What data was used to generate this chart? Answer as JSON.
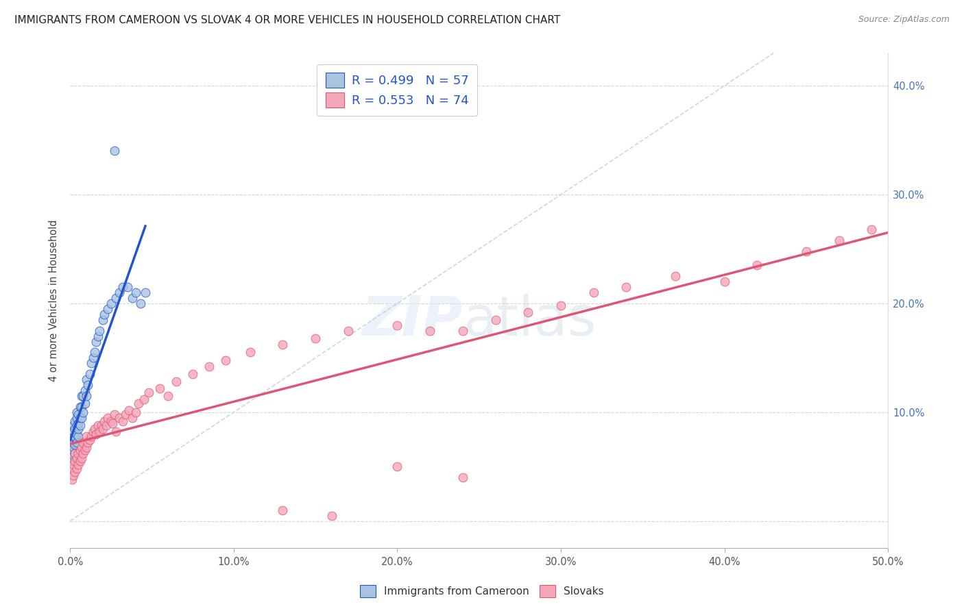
{
  "title": "IMMIGRANTS FROM CAMEROON VS SLOVAK 4 OR MORE VEHICLES IN HOUSEHOLD CORRELATION CHART",
  "source": "Source: ZipAtlas.com",
  "ylabel": "4 or more Vehicles in Household",
  "xlim": [
    0.0,
    0.5
  ],
  "ylim": [
    -0.025,
    0.43
  ],
  "legend_R1": "R = 0.499",
  "legend_N1": "N = 57",
  "legend_R2": "R = 0.553",
  "legend_N2": "N = 74",
  "legend_label1": "Immigrants from Cameroon",
  "legend_label2": "Slovaks",
  "color_cameroon": "#a8c4e0",
  "color_slovak": "#f4a7b9",
  "line_color_cameroon": "#2255cc",
  "line_color_slovak": "#e05575",
  "dashed_line_color": "#b8cfe0",
  "cam_x": [
    0.001,
    0.001,
    0.001,
    0.001,
    0.002,
    0.002,
    0.002,
    0.002,
    0.002,
    0.002,
    0.003,
    0.003,
    0.003,
    0.003,
    0.003,
    0.004,
    0.004,
    0.004,
    0.004,
    0.004,
    0.005,
    0.005,
    0.005,
    0.005,
    0.006,
    0.006,
    0.006,
    0.007,
    0.007,
    0.007,
    0.008,
    0.008,
    0.009,
    0.009,
    0.01,
    0.01,
    0.011,
    0.012,
    0.013,
    0.014,
    0.015,
    0.016,
    0.017,
    0.018,
    0.02,
    0.021,
    0.023,
    0.025,
    0.027,
    0.028,
    0.03,
    0.032,
    0.035,
    0.038,
    0.04,
    0.043,
    0.046
  ],
  "cam_y": [
    0.055,
    0.065,
    0.07,
    0.075,
    0.06,
    0.068,
    0.072,
    0.078,
    0.082,
    0.088,
    0.062,
    0.07,
    0.078,
    0.085,
    0.092,
    0.072,
    0.08,
    0.088,
    0.095,
    0.1,
    0.078,
    0.085,
    0.09,
    0.098,
    0.088,
    0.095,
    0.105,
    0.095,
    0.105,
    0.115,
    0.1,
    0.115,
    0.108,
    0.12,
    0.115,
    0.13,
    0.125,
    0.135,
    0.145,
    0.15,
    0.155,
    0.165,
    0.17,
    0.175,
    0.185,
    0.19,
    0.195,
    0.2,
    0.34,
    0.205,
    0.21,
    0.215,
    0.215,
    0.205,
    0.21,
    0.2,
    0.21
  ],
  "slo_x": [
    0.001,
    0.001,
    0.002,
    0.002,
    0.003,
    0.003,
    0.003,
    0.004,
    0.004,
    0.005,
    0.005,
    0.006,
    0.006,
    0.007,
    0.007,
    0.008,
    0.008,
    0.009,
    0.01,
    0.01,
    0.011,
    0.012,
    0.013,
    0.014,
    0.015,
    0.016,
    0.017,
    0.018,
    0.019,
    0.02,
    0.021,
    0.022,
    0.023,
    0.025,
    0.026,
    0.027,
    0.028,
    0.03,
    0.032,
    0.034,
    0.036,
    0.038,
    0.04,
    0.042,
    0.045,
    0.048,
    0.055,
    0.06,
    0.065,
    0.075,
    0.085,
    0.095,
    0.11,
    0.13,
    0.15,
    0.17,
    0.2,
    0.22,
    0.24,
    0.26,
    0.28,
    0.3,
    0.32,
    0.34,
    0.37,
    0.4,
    0.42,
    0.45,
    0.47,
    0.24,
    0.2,
    0.16,
    0.13,
    0.49
  ],
  "slo_y": [
    0.038,
    0.048,
    0.042,
    0.052,
    0.045,
    0.055,
    0.062,
    0.048,
    0.058,
    0.052,
    0.062,
    0.055,
    0.065,
    0.058,
    0.068,
    0.062,
    0.072,
    0.065,
    0.068,
    0.078,
    0.072,
    0.075,
    0.078,
    0.082,
    0.085,
    0.08,
    0.088,
    0.082,
    0.088,
    0.085,
    0.092,
    0.088,
    0.095,
    0.092,
    0.09,
    0.098,
    0.082,
    0.095,
    0.092,
    0.098,
    0.102,
    0.095,
    0.1,
    0.108,
    0.112,
    0.118,
    0.122,
    0.115,
    0.128,
    0.135,
    0.142,
    0.148,
    0.155,
    0.162,
    0.168,
    0.175,
    0.18,
    0.175,
    0.175,
    0.185,
    0.192,
    0.198,
    0.21,
    0.215,
    0.225,
    0.22,
    0.235,
    0.248,
    0.258,
    0.04,
    0.05,
    0.005,
    0.01,
    0.268
  ]
}
